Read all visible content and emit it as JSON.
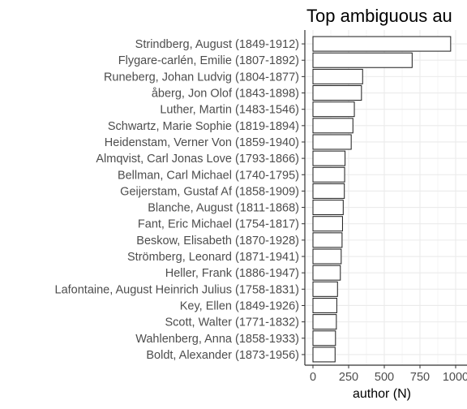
{
  "chart_data": {
    "type": "bar",
    "orientation": "horizontal",
    "title": "Top ambiguous au",
    "xlabel": "author (N)",
    "ylabel": "",
    "xlim": [
      -40,
      1000
    ],
    "xticks": [
      0,
      250,
      500,
      750,
      1000
    ],
    "xtick_labels": [
      "0",
      "250",
      "500",
      "750",
      "1000"
    ],
    "grid": true,
    "categories": [
      "Strindberg, August (1849-1912)",
      "Flygare-carlén, Emilie (1807-1892)",
      "Runeberg, Johan Ludvig (1804-1877)",
      "åberg, Jon Olof (1843-1898)",
      "Luther, Martin (1483-1546)",
      "Schwartz, Marie Sophie (1819-1894)",
      "Heidenstam, Verner Von (1859-1940)",
      "Almqvist, Carl Jonas Love (1793-1866)",
      "Bellman, Carl Michael (1740-1795)",
      "Geijerstam, Gustaf Af (1858-1909)",
      "Blanche, August (1811-1868)",
      "Fant, Eric Michael (1754-1817)",
      "Beskow, Elisabeth (1870-1928)",
      "Strömberg, Leonard (1871-1941)",
      "Heller, Frank (1886-1947)",
      "Lafontaine, August Heinrich Julius (1758-1831)",
      "Key, Ellen (1849-1926)",
      "Scott, Walter (1771-1832)",
      "Wahlenberg, Anna (1858-1933)",
      "Boldt, Alexander (1873-1956)"
    ],
    "values": [
      965,
      695,
      348,
      340,
      290,
      280,
      268,
      225,
      222,
      220,
      212,
      207,
      204,
      198,
      192,
      172,
      167,
      164,
      158,
      155
    ],
    "colors": {
      "bar_fill": "#ffffff",
      "bar_stroke": "#1a1a1a",
      "grid": "#ebebeb",
      "axis": "#333333"
    }
  }
}
